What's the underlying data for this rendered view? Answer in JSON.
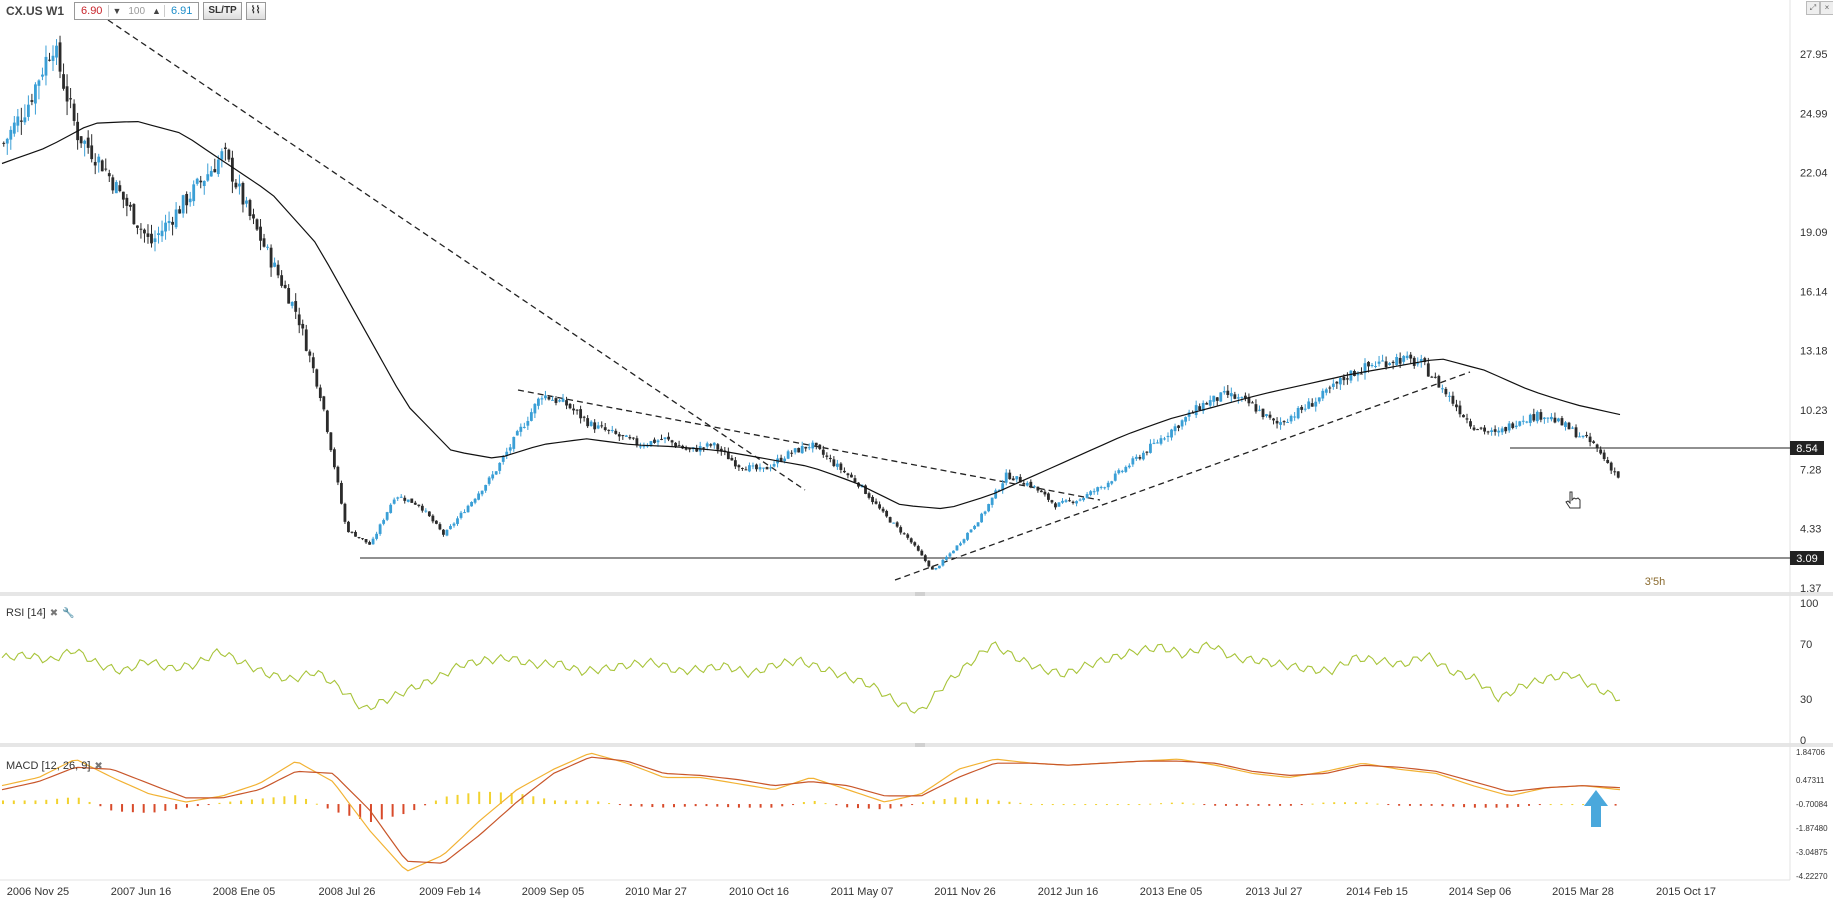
{
  "toolbar": {
    "symbol": "CX.US W1",
    "bid": "6.90",
    "quantity": "100",
    "ask": "6.91",
    "sltp_label": "SL/TP"
  },
  "main_axis": {
    "ticks": [
      "27.95",
      "24.99",
      "22.04",
      "19.09",
      "16.14",
      "13.18",
      "10.23",
      "7.28",
      "4.33",
      "1.37"
    ],
    "tick_values": [
      27.95,
      24.99,
      22.04,
      19.09,
      16.14,
      13.18,
      10.23,
      7.28,
      4.33,
      1.37
    ],
    "ylim": [
      1.37,
      29.5
    ]
  },
  "price_labels": {
    "level1": "8.54",
    "level2": "3.09"
  },
  "countdown": "3'5h",
  "x_axis": {
    "labels": [
      "2006 Nov 25",
      "2007 Jun 16",
      "2008 Ene 05",
      "2008 Jul 26",
      "2009 Feb 14",
      "2009 Sep 05",
      "2010 Mar 27",
      "2010 Oct 16",
      "2011 May 07",
      "2011 Nov 26",
      "2012 Jun 16",
      "2013 Ene 05",
      "2013 Jul 27",
      "2014 Feb 15",
      "2014 Sep 06",
      "2015 Mar 28",
      "2015 Oct 17"
    ]
  },
  "rsi": {
    "label": "RSI [14]",
    "ticks": [
      "100",
      "70",
      "30",
      "0"
    ],
    "tick_values": [
      100,
      70,
      30,
      0
    ]
  },
  "macd": {
    "label": "MACD [12, 26, 9]",
    "ticks": [
      "1.84706",
      "0.47311",
      "-0.70084",
      "-1.87480",
      "-3.04875",
      "-4.22270"
    ],
    "tick_values": [
      1.84706,
      0.47311,
      -0.70084,
      -1.8748,
      -3.04875,
      -4.2227
    ]
  },
  "colors": {
    "bull": "#3a9fd6",
    "bear": "#2b2b2b",
    "rsi_line": "#a8c43a",
    "macd_line": "#f2b233",
    "signal_line": "#c8562a",
    "hist_pos": "#f2d22e",
    "hist_neg": "#d84a2a",
    "arrow": "#4aa8dc"
  },
  "chart_data": [
    {
      "type": "candlestick",
      "title": "CX.US W1",
      "xlabel": "",
      "ylabel": "",
      "x_labels": [
        "2006 Nov 25",
        "2007 Jun 16",
        "2008 Ene 05",
        "2008 Jul 26",
        "2009 Feb 14",
        "2009 Sep 05",
        "2010 Mar 27",
        "2010 Oct 16",
        "2011 May 07",
        "2011 Nov 26",
        "2012 Jun 16",
        "2013 Ene 05",
        "2013 Jul 27",
        "2014 Feb 15",
        "2014 Sep 06",
        "2015 Mar 28",
        "2015 Oct 17"
      ],
      "close_path": [
        23.5,
        25.5,
        28.5,
        24,
        22.5,
        20.5,
        18.5,
        20,
        21.5,
        23,
        20,
        17.5,
        15,
        10.8,
        4.3,
        3.5,
        6,
        5.5,
        4,
        5.5,
        7,
        9,
        11,
        10.5,
        9.5,
        9,
        8.5,
        8.8,
        8.2,
        8.5,
        7.5,
        7.2,
        8,
        8.5,
        7.5,
        6.5,
        5,
        3.8,
        2.2,
        3.5,
        5,
        7,
        6.5,
        5.5,
        5.8,
        6.5,
        7.5,
        8.5,
        9.5,
        10.5,
        11,
        10.5,
        9.5,
        10.2,
        11,
        12,
        12.5,
        12.8,
        12.5,
        11,
        9.5,
        9,
        9.8,
        10,
        9.3,
        8.5,
        6.9
      ],
      "ma_path": [
        22.5,
        23.3,
        24.5,
        24.6,
        24,
        22.5,
        21,
        18.5,
        14.5,
        10.5,
        8.2,
        7.8,
        8.5,
        8.8,
        8.5,
        8.4,
        8.2,
        7.8,
        7.4,
        6.6,
        5.5,
        5.3,
        6,
        7,
        8,
        9,
        9.8,
        10.4,
        11,
        11.5,
        12,
        12.4,
        12.8,
        12.2,
        11.2,
        10.5,
        10
      ],
      "ylim": [
        1.37,
        29.5
      ],
      "horizontal_levels": [
        8.54,
        3.09
      ],
      "last_price": 6.9
    },
    {
      "type": "line",
      "title": "RSI [14]",
      "xlabel": "",
      "ylabel": "",
      "series": [
        {
          "name": "RSI [14]",
          "values": [
            60,
            62,
            58,
            66,
            55,
            50,
            58,
            52,
            55,
            65,
            56,
            48,
            44,
            50,
            38,
            22,
            30,
            38,
            45,
            55,
            58,
            60,
            55,
            56,
            50,
            52,
            55,
            57,
            50,
            52,
            54,
            48,
            55,
            58,
            52,
            46,
            40,
            28,
            20,
            40,
            55,
            70,
            60,
            52,
            48,
            55,
            60,
            65,
            68,
            62,
            70,
            60,
            58,
            55,
            52,
            50,
            60,
            58,
            55,
            62,
            50,
            45,
            30,
            40,
            45,
            48,
            38,
            30
          ]
        }
      ],
      "ylim": [
        0,
        100
      ]
    },
    {
      "type": "line",
      "title": "MACD [12, 26, 9]",
      "xlabel": "",
      "ylabel": "",
      "series": [
        {
          "name": "MACD",
          "values": [
            0.2,
            0.6,
            1.5,
            0.6,
            -0.2,
            -0.6,
            -0.3,
            0.3,
            1.4,
            0.4,
            -2.0,
            -4.0,
            -3.2,
            -1.5,
            0.0,
            1.0,
            1.8,
            1.3,
            0.6,
            0.6,
            0.3,
            0.0,
            0.6,
            0.0,
            -0.6,
            -0.2,
            1.0,
            1.5,
            1.3,
            1.2,
            1.3,
            1.4,
            1.5,
            1.2,
            0.8,
            0.6,
            0.9,
            1.3,
            1.0,
            0.8,
            0.2,
            -0.3,
            0.1,
            0.2,
            0.0
          ]
        },
        {
          "name": "Signal",
          "values": [
            0.0,
            0.4,
            1.1,
            1.0,
            0.3,
            -0.4,
            -0.4,
            0.0,
            0.9,
            0.8,
            -1.0,
            -3.5,
            -3.6,
            -2.2,
            -0.6,
            0.8,
            1.6,
            1.4,
            0.8,
            0.7,
            0.5,
            0.2,
            0.4,
            0.2,
            -0.3,
            -0.3,
            0.6,
            1.3,
            1.3,
            1.2,
            1.3,
            1.4,
            1.4,
            1.3,
            0.9,
            0.7,
            0.8,
            1.2,
            1.1,
            0.9,
            0.4,
            -0.1,
            0.1,
            0.2,
            0.1
          ]
        }
      ],
      "ylim": [
        -4.2227,
        1.84706
      ]
    }
  ]
}
